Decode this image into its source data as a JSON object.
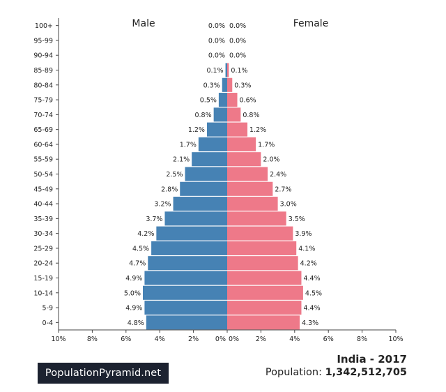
{
  "chart_data": {
    "type": "bar",
    "subtype": "population-pyramid",
    "categories": [
      "0-4",
      "5-9",
      "10-14",
      "15-19",
      "20-24",
      "25-29",
      "30-34",
      "35-39",
      "40-44",
      "45-49",
      "50-54",
      "55-59",
      "60-64",
      "65-69",
      "70-74",
      "75-79",
      "80-84",
      "85-89",
      "90-94",
      "95-99",
      "100+"
    ],
    "series": [
      {
        "name": "Male",
        "color": "#4682b4",
        "values": [
          4.8,
          4.9,
          5.0,
          4.9,
          4.7,
          4.5,
          4.2,
          3.7,
          3.2,
          2.8,
          2.5,
          2.1,
          1.7,
          1.2,
          0.8,
          0.5,
          0.3,
          0.1,
          0.0,
          0.0,
          0.0
        ]
      },
      {
        "name": "Female",
        "color": "#ee7989",
        "values": [
          4.3,
          4.4,
          4.5,
          4.4,
          4.2,
          4.1,
          3.9,
          3.5,
          3.0,
          2.7,
          2.4,
          2.0,
          1.7,
          1.2,
          0.8,
          0.6,
          0.3,
          0.1,
          0.0,
          0.0,
          0.0
        ]
      }
    ],
    "x_ticks": [
      "10%",
      "8%",
      "6%",
      "4%",
      "2%",
      "0%",
      "0%",
      "2%",
      "4%",
      "6%",
      "8%",
      "10%"
    ],
    "xlim": [
      -10,
      10
    ],
    "unit": "%"
  },
  "footer": {
    "brand": "PopulationPyramid.net",
    "country_year": "India - 2017",
    "population_label": "Population:",
    "population_value": "1,342,512,705"
  }
}
